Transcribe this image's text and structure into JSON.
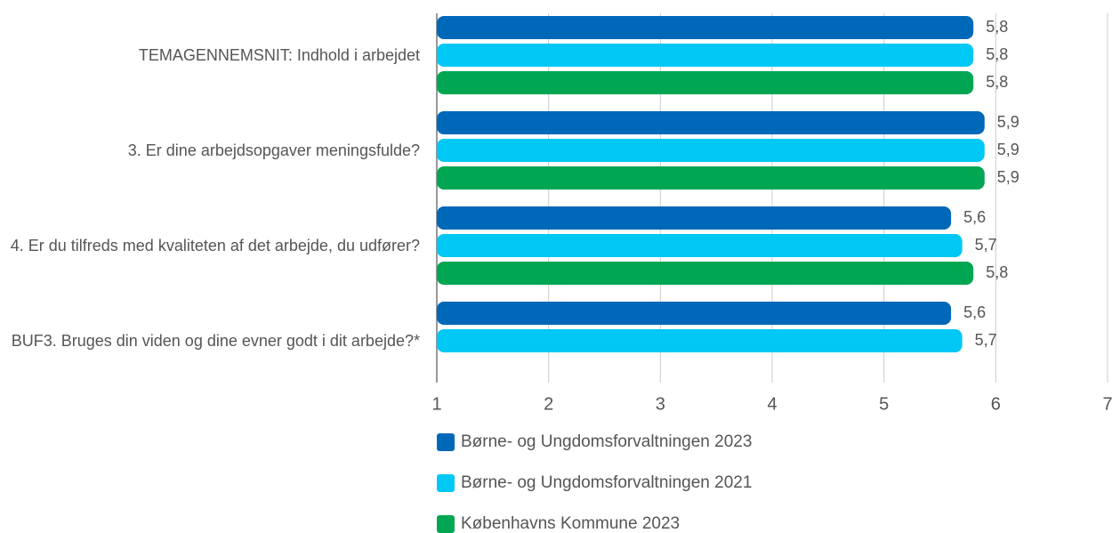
{
  "chart_data": {
    "type": "bar",
    "orientation": "horizontal",
    "categories": [
      "TEMAGENNEMSNIT: Indhold i arbejdet",
      "3. Er dine arbejdsopgaver meningsfulde?",
      "4. Er du tilfreds med kvaliteten af det arbejde, du udfører?",
      "BUF3. Bruges din viden og dine evner godt i dit arbejde?*"
    ],
    "series": [
      {
        "name": "Børne- og Ungdomsforvaltningen 2023",
        "color": "#0068b8",
        "values": [
          5.8,
          5.9,
          5.6,
          5.6
        ],
        "value_labels": [
          "5,8",
          "5,9",
          "5,6",
          "5,6"
        ]
      },
      {
        "name": "Børne- og Ungdomsforvaltningen 2021",
        "color": "#00c8f5",
        "values": [
          5.8,
          5.9,
          5.7,
          5.7
        ],
        "value_labels": [
          "5,8",
          "5,9",
          "5,7",
          "5,7"
        ]
      },
      {
        "name": "Københavns Kommune 2023",
        "color": "#00a651",
        "values": [
          5.8,
          5.9,
          5.8,
          null
        ],
        "value_labels": [
          "5,8",
          "5,9",
          "5,8",
          null
        ]
      }
    ],
    "xlim": [
      1,
      7
    ],
    "xticks": [
      1,
      2,
      3,
      4,
      5,
      6,
      7
    ],
    "grid": true,
    "legend": "bottom"
  }
}
